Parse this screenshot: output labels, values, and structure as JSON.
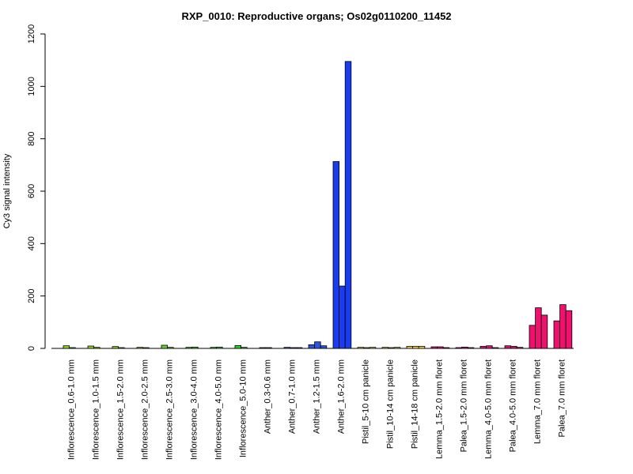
{
  "chart_data": {
    "type": "bar",
    "title": "RXP_0010: Reproductive organs; Os02g0110200_11452",
    "ylabel": "Cy3 signal intensity",
    "xlabel": "",
    "ylim": [
      0,
      1200
    ],
    "yticks": [
      0,
      200,
      400,
      600,
      800,
      1000,
      1200
    ],
    "grid": false,
    "legend": "none",
    "categories": [
      "Inflorescence_0.6-1.0 mm",
      "Inflorescence_1.0-1.5 mm",
      "Inflorescence_1.5-2.0 mm",
      "Inflorescence_2.0-2.5 mm",
      "Inflorescence_2.5-3.0 mm",
      "Inflorescence_3.0-4.0 mm",
      "Inflorescence_4.0-5.0 mm",
      "Inflorescence_5.0-10 mm",
      "Anther_0.3-0.6 mm",
      "Anther_0.7-1.0 mm",
      "Anther_1.2-1.5 mm",
      "Anther_1.6-2.0 mm",
      "Pistil_5-10 cm panicle",
      "Pistil_10-14 cm panicle",
      "Pistil_14-18 cm panicle",
      "Lemma_1.5-2.0 mm floret",
      "Palea_1.5-2.0 mm floret",
      "Lemma_4.0-5.0 mm floret",
      "Palea_4.0-5.0 mm floret",
      "Lemma_7.0 mm floret",
      "Palea_7.0 mm floret"
    ],
    "colors": [
      "#8fd61e",
      "#8fd61e",
      "#8fd61e",
      "#7fd225",
      "#5fd62a",
      "#4fd62c",
      "#3ad63a",
      "#22d22a",
      "#2a4fd8",
      "#2a4fd8",
      "#2a55e0",
      "#1a3cf0",
      "#e6c83a",
      "#e6c83a",
      "#f0d040",
      "#e0107a",
      "#e0107a",
      "#e0107a",
      "#e0107a",
      "#f0106e",
      "#f0106e"
    ],
    "values": [
      [
        10,
        3,
        null
      ],
      [
        9,
        4,
        null
      ],
      [
        7,
        3,
        null
      ],
      [
        4,
        3,
        null
      ],
      [
        12,
        4,
        null
      ],
      [
        4,
        5,
        null
      ],
      [
        4,
        5,
        null
      ],
      [
        11,
        4,
        null
      ],
      [
        3,
        3,
        null
      ],
      [
        4,
        3,
        3
      ],
      [
        14,
        25,
        10
      ],
      [
        713,
        238,
        1095
      ],
      [
        4,
        3,
        4
      ],
      [
        4,
        3,
        4
      ],
      [
        8,
        8,
        8
      ],
      [
        6,
        6,
        3
      ],
      [
        3,
        5,
        3
      ],
      [
        8,
        10,
        3
      ],
      [
        10,
        8,
        4
      ],
      [
        88,
        155,
        127
      ],
      [
        105,
        167,
        144
      ]
    ]
  }
}
